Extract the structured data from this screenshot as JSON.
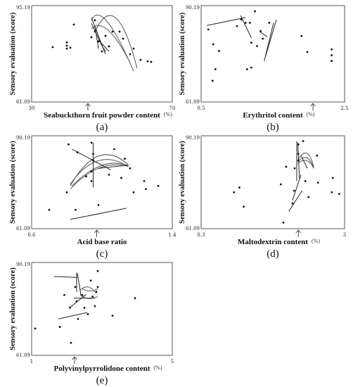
{
  "chart_data": [
    {
      "type": "scatter",
      "panel_label": "(a)",
      "ylabel": "Sensory evaluation (score)",
      "xlabel": "Seabuckthorn fruit powder content",
      "unit": "(%)",
      "xlim": [
        30,
        70
      ],
      "ylim": [
        61.09,
        95.19
      ],
      "x_tick_labels": [
        "30",
        "70"
      ],
      "y_tick_labels": [
        "61.09",
        "95.19"
      ],
      "marker_x": 46,
      "points": [
        [
          36,
          80.5
        ],
        [
          40,
          81
        ],
        [
          40,
          80
        ],
        [
          41,
          80.3
        ],
        [
          40,
          82.2
        ],
        [
          42,
          88.5
        ],
        [
          47,
          84
        ],
        [
          48,
          90
        ],
        [
          48,
          86
        ],
        [
          49,
          82.5
        ],
        [
          50,
          79
        ],
        [
          51,
          84.5
        ],
        [
          52,
          80.8
        ],
        [
          53,
          86
        ],
        [
          55,
          86
        ],
        [
          56,
          83.5
        ],
        [
          58,
          78
        ],
        [
          59,
          80
        ],
        [
          61,
          76
        ],
        [
          63,
          75.5
        ],
        [
          64,
          75.3
        ]
      ],
      "segments": [
        [
          [
            47,
            91
          ],
          [
            51,
            78
          ]
        ],
        [
          [
            47,
            89
          ],
          [
            50,
            81
          ]
        ],
        [
          [
            48,
            88
          ],
          [
            49,
            80
          ]
        ],
        [
          [
            49,
            83
          ],
          [
            52,
            79
          ]
        ],
        [
          [
            50,
            81
          ],
          [
            51,
            79
          ]
        ]
      ],
      "curves": [
        [
          [
            47,
            90
          ],
          [
            50,
            98
          ],
          [
            59,
            72
          ]
        ],
        [
          [
            47,
            87
          ],
          [
            51,
            92
          ],
          [
            58,
            75
          ]
        ],
        [
          [
            48,
            86
          ],
          [
            54,
            102
          ],
          [
            60,
            73
          ]
        ]
      ]
    },
    {
      "type": "scatter",
      "panel_label": "(b)",
      "ylabel": "Sensory evaluation (score)",
      "xlabel": "Erythritol content",
      "unit": "(%)",
      "xlim": [
        0.5,
        2.5
      ],
      "ylim": [
        61.09,
        90.19
      ],
      "x_tick_labels": [
        "0.5",
        "2.5"
      ],
      "y_tick_labels": [
        "61.09",
        "90.19"
      ],
      "marker_x": 2.06,
      "points": [
        [
          0.6,
          83
        ],
        [
          0.67,
          78.5
        ],
        [
          0.7,
          71
        ],
        [
          0.75,
          76.5
        ],
        [
          0.66,
          67.5
        ],
        [
          1.0,
          84
        ],
        [
          1.06,
          86
        ],
        [
          1.12,
          85
        ],
        [
          1.18,
          85
        ],
        [
          1.2,
          79
        ],
        [
          1.2,
          71.5
        ],
        [
          1.14,
          71
        ],
        [
          1.25,
          88.5
        ],
        [
          1.28,
          78
        ],
        [
          1.33,
          82.5
        ],
        [
          1.36,
          80.2
        ],
        [
          1.45,
          85
        ],
        [
          1.9,
          81
        ],
        [
          1.98,
          76.2
        ],
        [
          2.32,
          77
        ],
        [
          2.32,
          75.2
        ],
        [
          2.32,
          73.5
        ]
      ],
      "segments": [
        [
          [
            0.58,
            84.2
          ],
          [
            1.12,
            86.6
          ]
        ],
        [
          [
            1.05,
            87.2
          ],
          [
            1.2,
            80.5
          ]
        ],
        [
          [
            1.38,
            73.5
          ],
          [
            1.51,
            85
          ]
        ],
        [
          [
            1.4,
            75
          ],
          [
            1.55,
            86
          ]
        ],
        [
          [
            1.32,
            82.3
          ],
          [
            1.42,
            80.8
          ]
        ]
      ],
      "curves": []
    },
    {
      "type": "scatter",
      "panel_label": "(c)",
      "ylabel": "Sensory evaluation (score)",
      "xlabel": "Acid base ratio",
      "unit": "",
      "xlim": [
        0.6,
        1.4
      ],
      "ylim": [
        61.09,
        90.19
      ],
      "x_tick_labels": [
        "0.6",
        "1.4"
      ],
      "y_tick_labels": [
        "61.09",
        "90.19"
      ],
      "marker_x": 0.97,
      "points": [
        [
          0.7,
          67
        ],
        [
          0.8,
          72.5
        ],
        [
          0.81,
          87.5
        ],
        [
          0.85,
          67
        ],
        [
          0.86,
          85
        ],
        [
          0.91,
          77.5
        ],
        [
          0.94,
          88
        ],
        [
          0.94,
          79
        ],
        [
          0.94,
          76
        ],
        [
          0.95,
          84.5
        ],
        [
          0.95,
          82.5
        ],
        [
          0.98,
          68.5
        ],
        [
          1.04,
          78
        ],
        [
          1.07,
          86
        ],
        [
          1.11,
          77
        ],
        [
          1.13,
          83
        ],
        [
          1.16,
          80
        ],
        [
          1.18,
          72.5
        ],
        [
          1.25,
          73.5
        ],
        [
          1.24,
          76
        ],
        [
          1.32,
          74.5
        ]
      ],
      "segments": [
        [
          [
            0.83,
            86
          ],
          [
            1.05,
            79.5
          ]
        ],
        [
          [
            0.82,
            64
          ],
          [
            1.14,
            67.5
          ]
        ],
        [
          [
            0.95,
            88
          ],
          [
            0.95,
            74
          ]
        ],
        [
          [
            0.98,
            80
          ],
          [
            1.15,
            81
          ]
        ]
      ],
      "curves": [
        [
          [
            0.82,
            74.5
          ],
          [
            0.98,
            90
          ],
          [
            1.15,
            81
          ]
        ],
        [
          [
            0.82,
            75
          ],
          [
            0.97,
            87
          ],
          [
            1.15,
            80.5
          ]
        ],
        [
          [
            0.83,
            74.5
          ],
          [
            1.0,
            84
          ],
          [
            1.15,
            80.8
          ]
        ],
        [
          [
            0.82,
            73.5
          ],
          [
            0.98,
            83
          ],
          [
            1.15,
            80.6
          ]
        ]
      ]
    },
    {
      "type": "scatter",
      "panel_label": "(d)",
      "ylabel": "Sensory evaluation (score)",
      "xlabel": "Maltodextrin content",
      "unit": "(%)",
      "xlim": [
        0.3,
        3
      ],
      "ylim": [
        61.09,
        90.19
      ],
      "x_tick_labels": [
        "0.3",
        "3"
      ],
      "y_tick_labels": [
        "61.09",
        "90.19"
      ],
      "marker_x": 2.13,
      "points": [
        [
          0.92,
          72.5
        ],
        [
          1.02,
          74
        ],
        [
          1.1,
          68
        ],
        [
          1.8,
          75
        ],
        [
          1.85,
          63
        ],
        [
          1.9,
          80.5
        ],
        [
          2.02,
          69
        ],
        [
          2.05,
          73
        ],
        [
          2.06,
          80
        ],
        [
          2.13,
          87.5
        ],
        [
          2.13,
          84.5
        ],
        [
          2.13,
          82.5
        ],
        [
          2.22,
          88.5
        ],
        [
          2.26,
          76
        ],
        [
          2.32,
          71
        ],
        [
          2.48,
          84
        ],
        [
          2.5,
          75.5
        ],
        [
          2.76,
          72.5
        ],
        [
          2.78,
          77
        ],
        [
          2.9,
          72
        ]
      ],
      "segments": [
        [
          [
            2.1,
            88.5
          ],
          [
            2.1,
            76
          ]
        ],
        [
          [
            2.12,
            88
          ],
          [
            2.15,
            77
          ]
        ],
        [
          [
            1.95,
            66.5
          ],
          [
            2.2,
            73
          ]
        ],
        [
          [
            2.02,
            70
          ],
          [
            2.18,
            78
          ]
        ],
        [
          [
            2.18,
            84
          ],
          [
            2.3,
            80
          ]
        ]
      ],
      "curves": [
        [
          [
            2.12,
            82.5
          ],
          [
            2.3,
            88
          ],
          [
            2.42,
            80.5
          ]
        ],
        [
          [
            2.12,
            82
          ],
          [
            2.3,
            85.5
          ],
          [
            2.42,
            80.2
          ]
        ],
        [
          [
            2.12,
            81.6
          ],
          [
            2.3,
            84
          ],
          [
            2.42,
            80
          ]
        ]
      ]
    },
    {
      "type": "scatter",
      "panel_label": "(e)",
      "ylabel": "Sensory evaluation (score)",
      "xlabel": "Polyvinylpyrrolidone content",
      "unit": "(%)",
      "xlim": [
        1,
        5
      ],
      "ylim": [
        61.09,
        90.19
      ],
      "x_tick_labels": [
        "1",
        "5"
      ],
      "y_tick_labels": [
        "61.09",
        "90.19"
      ],
      "marker_x": 2.22,
      "points": [
        [
          1.1,
          69.5
        ],
        [
          1.8,
          70
        ],
        [
          1.93,
          80
        ],
        [
          2.09,
          76
        ],
        [
          2.12,
          65
        ],
        [
          2.24,
          82.5
        ],
        [
          2.28,
          78
        ],
        [
          2.32,
          72.5
        ],
        [
          2.44,
          80
        ],
        [
          2.5,
          76
        ],
        [
          2.6,
          74
        ],
        [
          2.68,
          84.5
        ],
        [
          2.73,
          79.5
        ],
        [
          2.8,
          76.5
        ],
        [
          2.84,
          81
        ],
        [
          2.88,
          82.5
        ],
        [
          2.88,
          87.5
        ],
        [
          3.3,
          73.5
        ],
        [
          3.94,
          79
        ]
      ],
      "segments": [
        [
          [
            1.63,
            85.8
          ],
          [
            2.3,
            85.5
          ]
        ],
        [
          [
            2.28,
            87
          ],
          [
            2.28,
            81
          ]
        ],
        [
          [
            2.3,
            86.8
          ],
          [
            2.4,
            80
          ]
        ],
        [
          [
            1.76,
            72.5
          ],
          [
            2.58,
            74.5
          ]
        ],
        [
          [
            2.1,
            76.2
          ],
          [
            2.55,
            80.2
          ]
        ],
        [
          [
            2.2,
            79
          ],
          [
            2.8,
            79
          ]
        ]
      ],
      "curves": [
        [
          [
            2.38,
            81.5
          ],
          [
            2.6,
            84
          ],
          [
            2.84,
            80.5
          ]
        ],
        [
          [
            2.38,
            80
          ],
          [
            2.62,
            78
          ],
          [
            2.88,
            79.5
          ]
        ],
        [
          [
            2.42,
            82
          ],
          [
            2.7,
            80.5
          ],
          [
            2.88,
            82
          ]
        ]
      ]
    }
  ]
}
